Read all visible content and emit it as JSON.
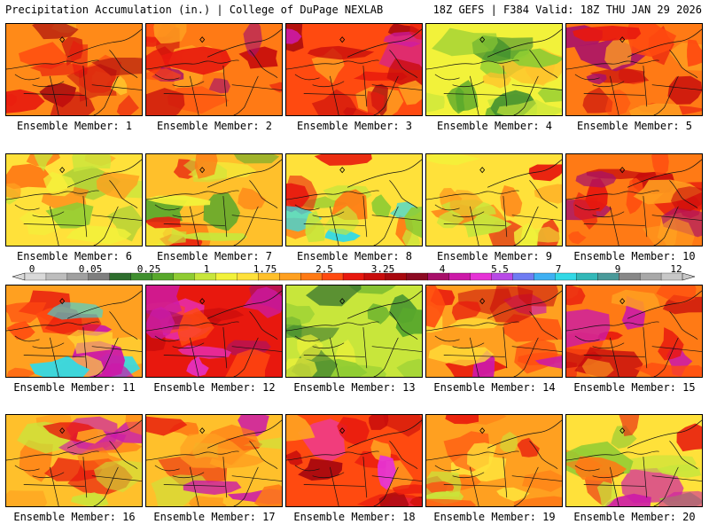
{
  "header": {
    "left_title": "Precipitation Accumulation (in.) | College of DuPage NEXLAB",
    "right_title": "18Z GEFS | F384 Valid: 18Z THU JAN 29 2026"
  },
  "colorbar": {
    "tick_labels": [
      "0",
      "0.05",
      "0.25",
      "1",
      "1.75",
      "2.5",
      "3.25",
      "4",
      "5.5",
      "7",
      "9",
      "12"
    ],
    "colors": [
      "#d9d9d9",
      "#bdbdbd",
      "#a0a0a0",
      "#7f7f7f",
      "#2e6e2e",
      "#3f8f2f",
      "#58a82c",
      "#8fcc33",
      "#c8e63b",
      "#f2f23a",
      "#ffe13a",
      "#ffc02b",
      "#ffa020",
      "#ff7a15",
      "#ff4a10",
      "#e8180e",
      "#c80c0c",
      "#a8080e",
      "#8c0a22",
      "#a8106a",
      "#cc1aa8",
      "#e633d6",
      "#b84ae6",
      "#6f7cf2",
      "#3fb0f2",
      "#33d9e6",
      "#33b8b8",
      "#4a9a9a",
      "#888888",
      "#a8a8a8",
      "#c8c8c8"
    ]
  },
  "panels": [
    {
      "label": "Ensemble Member: 1",
      "base": "#ff8a18",
      "palette": [
        "#e8180e",
        "#c80c0c",
        "#ffc02b",
        "#a8080e",
        "#ff4a10"
      ]
    },
    {
      "label": "Ensemble Member: 2",
      "base": "#ff7a15",
      "palette": [
        "#e8180e",
        "#c80c0c",
        "#ffa020",
        "#a8106a",
        "#ff4a10"
      ]
    },
    {
      "label": "Ensemble Member: 3",
      "base": "#ff4a10",
      "palette": [
        "#c80c0c",
        "#a8080e",
        "#cc1aa8",
        "#e8180e",
        "#ffa020"
      ]
    },
    {
      "label": "Ensemble Member: 4",
      "base": "#f2f23a",
      "palette": [
        "#8fcc33",
        "#58a82c",
        "#3f8f2f",
        "#ffc02b",
        "#c8e63b"
      ]
    },
    {
      "label": "Ensemble Member: 5",
      "base": "#ff7a15",
      "palette": [
        "#e8180e",
        "#c80c0c",
        "#a8106a",
        "#ffa020",
        "#ff4a10"
      ]
    },
    {
      "label": "Ensemble Member: 6",
      "base": "#ffe13a",
      "palette": [
        "#c8e63b",
        "#8fcc33",
        "#ffa020",
        "#ff7a15",
        "#f2f23a"
      ]
    },
    {
      "label": "Ensemble Member: 7",
      "base": "#ffc02b",
      "palette": [
        "#c8e63b",
        "#58a82c",
        "#ff7a15",
        "#e8180e",
        "#f2f23a"
      ]
    },
    {
      "label": "Ensemble Member: 8",
      "base": "#ffe13a",
      "palette": [
        "#c8e63b",
        "#8fcc33",
        "#ff7a15",
        "#e8180e",
        "#33d9e6"
      ]
    },
    {
      "label": "Ensemble Member: 9",
      "base": "#ffe13a",
      "palette": [
        "#c8e63b",
        "#ffa020",
        "#ff7a15",
        "#e8180e",
        "#f2f23a"
      ]
    },
    {
      "label": "Ensemble Member: 10",
      "base": "#ff7a15",
      "palette": [
        "#e8180e",
        "#c80c0c",
        "#a8106a",
        "#ffa020",
        "#ff4a10"
      ]
    },
    {
      "label": "Ensemble Member: 11",
      "base": "#ffa020",
      "palette": [
        "#ff4a10",
        "#e8180e",
        "#cc1aa8",
        "#ffe13a",
        "#33d9e6"
      ]
    },
    {
      "label": "Ensemble Member: 12",
      "base": "#e8180e",
      "palette": [
        "#cc1aa8",
        "#a8106a",
        "#e633d6",
        "#c80c0c",
        "#ff4a10"
      ]
    },
    {
      "label": "Ensemble Member: 13",
      "base": "#c8e63b",
      "palette": [
        "#8fcc33",
        "#58a82c",
        "#3f8f2f",
        "#2e6e2e",
        "#f2f23a"
      ]
    },
    {
      "label": "Ensemble Member: 14",
      "base": "#ffa020",
      "palette": [
        "#ff4a10",
        "#e8180e",
        "#c80c0c",
        "#ffe13a",
        "#cc1aa8"
      ]
    },
    {
      "label": "Ensemble Member: 15",
      "base": "#ff7a15",
      "palette": [
        "#e8180e",
        "#c80c0c",
        "#ffa020",
        "#cc1aa8",
        "#ff4a10"
      ]
    },
    {
      "label": "Ensemble Member: 16",
      "base": "#ffc02b",
      "palette": [
        "#ff7a15",
        "#e8180e",
        "#c8e63b",
        "#cc1aa8",
        "#ffa020"
      ]
    },
    {
      "label": "Ensemble Member: 17",
      "base": "#ffc02b",
      "palette": [
        "#ff7a15",
        "#e8180e",
        "#c8e63b",
        "#cc1aa8",
        "#ffa020"
      ]
    },
    {
      "label": "Ensemble Member: 18",
      "base": "#ff4a10",
      "palette": [
        "#e8180e",
        "#c80c0c",
        "#ffa020",
        "#e633d6",
        "#a8080e"
      ]
    },
    {
      "label": "Ensemble Member: 19",
      "base": "#ffa020",
      "palette": [
        "#ff7a15",
        "#e8180e",
        "#ffe13a",
        "#c8e63b",
        "#ff4a10"
      ]
    },
    {
      "label": "Ensemble Member: 20",
      "base": "#ffe13a",
      "palette": [
        "#c8e63b",
        "#8fcc33",
        "#ff7a15",
        "#e8180e",
        "#cc1aa8"
      ]
    }
  ]
}
